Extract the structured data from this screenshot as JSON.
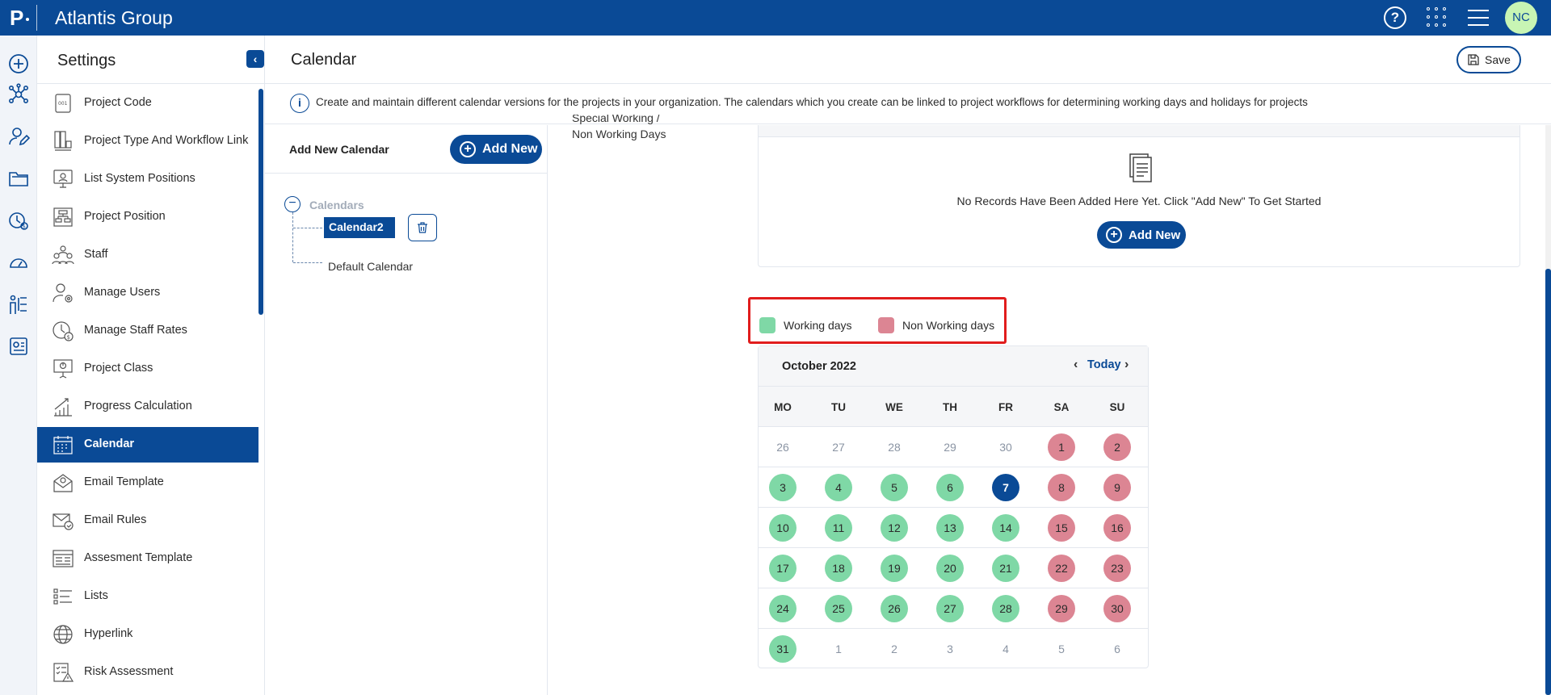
{
  "app": {
    "logo": "P",
    "org_name": "Atlantis Group",
    "help_icon": "help-circle-icon",
    "user_initials": "NC"
  },
  "sidebar": {
    "title": "Settings",
    "items": [
      {
        "label": "Project Code",
        "icon": "project-code-icon"
      },
      {
        "label": "Project Type And Workflow Link",
        "icon": "workflow-link-icon"
      },
      {
        "label": "List System Positions",
        "icon": "system-positions-icon"
      },
      {
        "label": "Project Position",
        "icon": "project-position-icon"
      },
      {
        "label": "Staff",
        "icon": "staff-icon"
      },
      {
        "label": "Manage Users",
        "icon": "manage-users-icon"
      },
      {
        "label": "Manage Staff Rates",
        "icon": "staff-rates-icon"
      },
      {
        "label": "Project Class",
        "icon": "project-class-icon"
      },
      {
        "label": "Progress Calculation",
        "icon": "progress-calculation-icon"
      },
      {
        "label": "Calendar",
        "icon": "calendar-icon",
        "active": true
      },
      {
        "label": "Email Template",
        "icon": "email-template-icon"
      },
      {
        "label": "Email Rules",
        "icon": "email-rules-icon"
      },
      {
        "label": "Assesment Template",
        "icon": "assessment-template-icon"
      },
      {
        "label": "Lists",
        "icon": "lists-icon"
      },
      {
        "label": "Hyperlink",
        "icon": "hyperlink-icon"
      },
      {
        "label": "Risk Assessment",
        "icon": "risk-assessment-icon"
      }
    ]
  },
  "header": {
    "title": "Calendar",
    "save_label": "Save",
    "info_text": "Create and maintain different calendar versions for the projects in your organization. The calendars which you create can be linked to project workflows for determining working days and holidays for projects"
  },
  "calendars_panel": {
    "add_label": "Add New Calendar",
    "add_button": "Add New",
    "tree_root": "Calendars",
    "selected": "Calendar2",
    "default_item": "Default Calendar"
  },
  "special_days": {
    "label": "Special Working / Non Working Days",
    "empty_text": "No Records Have Been Added Here Yet. Click \"Add New\" To Get Started",
    "add_button": "Add New"
  },
  "legend": {
    "working": "Working days",
    "non_working": "Non Working days",
    "working_color": "#7fd8a6",
    "non_working_color": "#dc8593"
  },
  "calendar": {
    "month_label": "October 2022",
    "today_label": "Today",
    "weekdays": [
      "MO",
      "TU",
      "WE",
      "TH",
      "FR",
      "SA",
      "SU"
    ],
    "weeks": [
      [
        {
          "d": "26",
          "t": "muted"
        },
        {
          "d": "27",
          "t": "muted"
        },
        {
          "d": "28",
          "t": "muted"
        },
        {
          "d": "29",
          "t": "muted"
        },
        {
          "d": "30",
          "t": "muted"
        },
        {
          "d": "1",
          "t": "nonwork"
        },
        {
          "d": "2",
          "t": "nonwork"
        }
      ],
      [
        {
          "d": "3",
          "t": "work"
        },
        {
          "d": "4",
          "t": "work"
        },
        {
          "d": "5",
          "t": "work"
        },
        {
          "d": "6",
          "t": "work"
        },
        {
          "d": "7",
          "t": "today"
        },
        {
          "d": "8",
          "t": "nonwork"
        },
        {
          "d": "9",
          "t": "nonwork"
        }
      ],
      [
        {
          "d": "10",
          "t": "work"
        },
        {
          "d": "11",
          "t": "work"
        },
        {
          "d": "12",
          "t": "work"
        },
        {
          "d": "13",
          "t": "work"
        },
        {
          "d": "14",
          "t": "work"
        },
        {
          "d": "15",
          "t": "nonwork"
        },
        {
          "d": "16",
          "t": "nonwork"
        }
      ],
      [
        {
          "d": "17",
          "t": "work"
        },
        {
          "d": "18",
          "t": "work"
        },
        {
          "d": "19",
          "t": "work"
        },
        {
          "d": "20",
          "t": "work"
        },
        {
          "d": "21",
          "t": "work"
        },
        {
          "d": "22",
          "t": "nonwork"
        },
        {
          "d": "23",
          "t": "nonwork"
        }
      ],
      [
        {
          "d": "24",
          "t": "work"
        },
        {
          "d": "25",
          "t": "work"
        },
        {
          "d": "26",
          "t": "work"
        },
        {
          "d": "27",
          "t": "work"
        },
        {
          "d": "28",
          "t": "work"
        },
        {
          "d": "29",
          "t": "nonwork"
        },
        {
          "d": "30",
          "t": "nonwork"
        }
      ],
      [
        {
          "d": "31",
          "t": "work"
        },
        {
          "d": "1",
          "t": "muted"
        },
        {
          "d": "2",
          "t": "muted"
        },
        {
          "d": "3",
          "t": "muted"
        },
        {
          "d": "4",
          "t": "muted"
        },
        {
          "d": "5",
          "t": "muted"
        },
        {
          "d": "6",
          "t": "muted"
        }
      ]
    ]
  }
}
